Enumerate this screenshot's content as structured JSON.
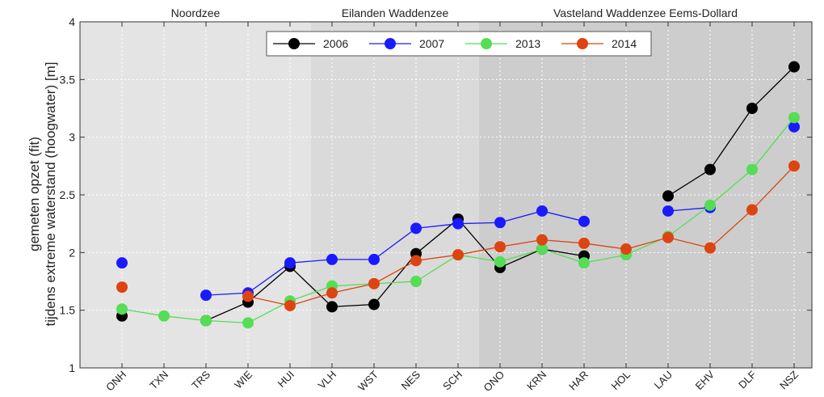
{
  "chart_data": {
    "type": "line",
    "title": "",
    "xlabel": "",
    "ylabel_line1": "gemeten opzet (fit)",
    "ylabel_line2": "tijdens extreme waterstand (hoogwater) [m]",
    "ylim": [
      1,
      4
    ],
    "yticks": [
      1,
      1.5,
      2,
      2.5,
      3,
      3.5,
      4
    ],
    "grid": true,
    "legend_position": "top-center",
    "categories": [
      "ONH",
      "TXN",
      "TRS",
      "WIE",
      "HUI",
      "VLH",
      "WST",
      "NES",
      "SCH",
      "ONO",
      "KRN",
      "HAR",
      "HOL",
      "LAU",
      "EHV",
      "DLF",
      "NSZ"
    ],
    "regions": [
      {
        "name": "Noordzee",
        "start": 0,
        "end": 4,
        "shade": "#e4e4e4"
      },
      {
        "name": "Eilanden Waddenzee",
        "start": 5,
        "end": 8,
        "shade": "#dadada"
      },
      {
        "name": "Vasteland Waddenzee Eems-Dollard",
        "start": 9,
        "end": 16,
        "shade": "#cdcdcd"
      }
    ],
    "series": [
      {
        "name": "2006",
        "color": "#000000",
        "values": [
          1.45,
          null,
          1.41,
          1.57,
          1.88,
          1.53,
          1.55,
          1.99,
          2.29,
          1.87,
          2.03,
          1.97,
          null,
          2.49,
          2.72,
          3.25,
          3.61
        ]
      },
      {
        "name": "2007",
        "color": "#1a1aff",
        "values": [
          1.91,
          null,
          1.63,
          1.65,
          1.91,
          1.94,
          1.94,
          2.21,
          2.25,
          2.26,
          2.36,
          2.27,
          null,
          2.36,
          2.39,
          null,
          3.09
        ]
      },
      {
        "name": "2013",
        "color": "#55dd55",
        "values": [
          1.51,
          1.45,
          1.41,
          1.39,
          1.58,
          1.71,
          1.73,
          1.75,
          1.98,
          1.92,
          2.03,
          1.91,
          1.98,
          2.14,
          2.41,
          2.72,
          3.17
        ]
      },
      {
        "name": "2014",
        "color": "#dd4411",
        "values": [
          1.7,
          null,
          null,
          1.62,
          1.54,
          1.65,
          1.73,
          1.93,
          1.98,
          2.05,
          2.11,
          2.08,
          2.03,
          2.13,
          2.04,
          2.37,
          2.75
        ]
      }
    ]
  }
}
